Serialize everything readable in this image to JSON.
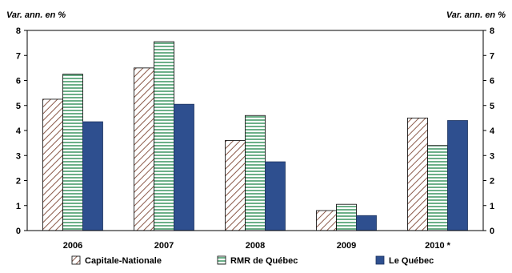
{
  "chart_data": {
    "type": "bar",
    "y_unit_left": "Var. ann. en %",
    "y_unit_right": "Var. ann. en %",
    "categories": [
      "2006",
      "2007",
      "2008",
      "2009",
      "2010 *"
    ],
    "ylim": [
      0,
      8
    ],
    "yticks": [
      0,
      1,
      2,
      3,
      4,
      5,
      6,
      7,
      8
    ],
    "grid": false,
    "legend_position": "bottom",
    "series": [
      {
        "name": "Capitale-Nationale",
        "pattern": "diagonal-hatch",
        "color": "#8b5a4a",
        "values": [
          5.25,
          6.5,
          3.6,
          0.8,
          4.5
        ]
      },
      {
        "name": "RMR de Québec",
        "pattern": "horizontal-lines",
        "color": "#0a7a3a",
        "values": [
          6.25,
          7.55,
          4.6,
          1.05,
          3.4
        ]
      },
      {
        "name": "Le Québec",
        "pattern": "solid",
        "color": "#2e4f8f",
        "values": [
          4.35,
          5.05,
          2.75,
          0.6,
          4.4
        ]
      }
    ]
  }
}
